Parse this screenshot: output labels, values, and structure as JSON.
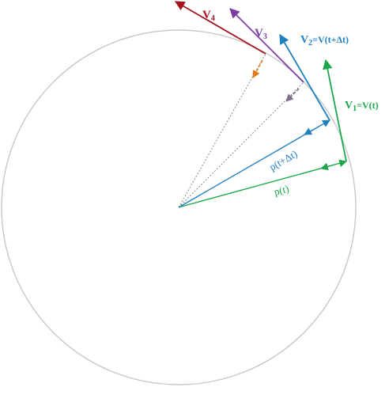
{
  "colors": {
    "circle": "#c8c8c8",
    "green": "#1aa84a",
    "blue": "#1f7fc0",
    "purple": "#7a3fa6",
    "darkred": "#a3141e",
    "orange": "#e07a17",
    "gray_purple": "#7f6f90",
    "dotted": "#8a8a8a"
  },
  "labels": {
    "v1": "V",
    "v1_sub": "1",
    "v1_rest": "=V(t)",
    "v2": "V",
    "v2_sub": "2",
    "v2_rest": "=V(t+Δt)",
    "v3": "V",
    "v3_sub": "3",
    "v4": "V",
    "v4_sub": "4",
    "p_t": "p(t)",
    "p_t_dt": "p(t+Δt)"
  }
}
